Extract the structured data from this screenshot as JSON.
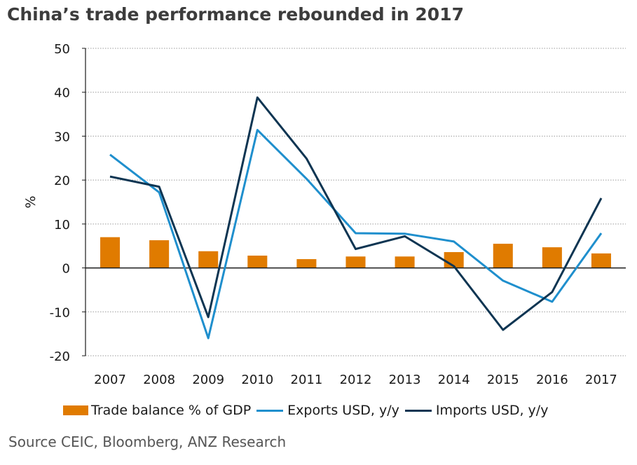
{
  "title": "China’s trade performance rebounded in 2017",
  "source": "Source CEIC, Bloomberg, ANZ Research",
  "chart_data": {
    "type": "bar+line",
    "categories": [
      "2007",
      "2008",
      "2009",
      "2010",
      "2011",
      "2012",
      "2013",
      "2014",
      "2015",
      "2016",
      "2017"
    ],
    "ylabel": "%",
    "ylim": [
      -20,
      50
    ],
    "yticks": [
      -20,
      -10,
      0,
      10,
      20,
      30,
      40,
      50
    ],
    "ytick_labels": [
      "-20",
      "-10",
      "0",
      "10",
      "20",
      "30",
      "40",
      "50"
    ],
    "grid": "horizontal dotted",
    "legend_position": "bottom",
    "series": [
      {
        "name": "Trade balance % of GDP",
        "type": "bar",
        "color": "#e07b00",
        "values": [
          7.0,
          6.3,
          3.8,
          2.8,
          2.0,
          2.6,
          2.6,
          3.6,
          5.5,
          4.7,
          3.3
        ]
      },
      {
        "name": "Exports USD, y/y",
        "type": "line",
        "color": "#1f8fcd",
        "values": [
          25.8,
          17.2,
          -16.0,
          31.4,
          20.3,
          7.9,
          7.8,
          6.0,
          -2.9,
          -7.7,
          7.9
        ]
      },
      {
        "name": "Imports USD, y/y",
        "type": "line",
        "color": "#0e3552",
        "values": [
          20.8,
          18.5,
          -11.2,
          38.8,
          24.9,
          4.3,
          7.2,
          0.4,
          -14.1,
          -5.5,
          15.9
        ]
      }
    ]
  }
}
